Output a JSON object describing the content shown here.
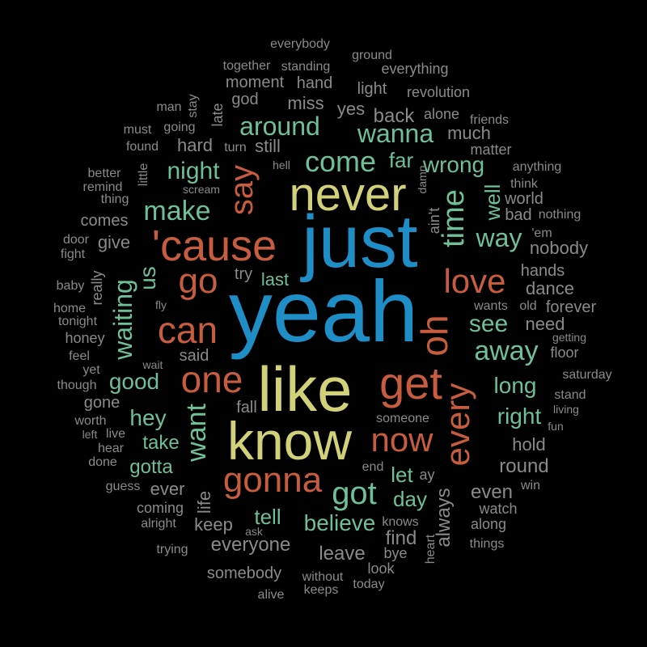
{
  "palette": {
    "blue": "#1f8ec7",
    "yellow": "#d1d17a",
    "orange": "#c75c3e",
    "teal": "#6fbf98",
    "gray": "#8a8a8a",
    "background": "#000000"
  },
  "words": [
    {
      "text": "yeah",
      "color": "blue"
    },
    {
      "text": "just",
      "color": "blue"
    },
    {
      "text": "like",
      "color": "yellow"
    },
    {
      "text": "know",
      "color": "yellow"
    },
    {
      "text": "never",
      "color": "yellow"
    },
    {
      "text": "'cause",
      "color": "orange"
    },
    {
      "text": "get",
      "color": "orange"
    },
    {
      "text": "one",
      "color": "orange"
    },
    {
      "text": "gonna",
      "color": "orange"
    },
    {
      "text": "now",
      "color": "orange"
    },
    {
      "text": "can",
      "color": "orange"
    },
    {
      "text": "go",
      "color": "orange"
    },
    {
      "text": "love",
      "color": "orange"
    },
    {
      "text": "oh",
      "color": "orange"
    },
    {
      "text": "every",
      "color": "orange"
    },
    {
      "text": "say",
      "color": "orange"
    },
    {
      "text": "time",
      "color": "teal"
    },
    {
      "text": "got",
      "color": "teal"
    },
    {
      "text": "come",
      "color": "teal"
    },
    {
      "text": "make",
      "color": "teal"
    },
    {
      "text": "around",
      "color": "teal"
    },
    {
      "text": "wanna",
      "color": "teal"
    },
    {
      "text": "away",
      "color": "teal"
    },
    {
      "text": "see",
      "color": "teal"
    },
    {
      "text": "waiting",
      "color": "teal"
    },
    {
      "text": "want",
      "color": "teal"
    },
    {
      "text": "night",
      "color": "teal"
    },
    {
      "text": "wrong",
      "color": "teal"
    },
    {
      "text": "way",
      "color": "teal"
    },
    {
      "text": "believe",
      "color": "teal"
    },
    {
      "text": "good",
      "color": "teal"
    },
    {
      "text": "hey",
      "color": "teal"
    },
    {
      "text": "long",
      "color": "teal"
    },
    {
      "text": "right",
      "color": "teal"
    },
    {
      "text": "let",
      "color": "teal"
    },
    {
      "text": "day",
      "color": "teal"
    },
    {
      "text": "tell",
      "color": "teal"
    },
    {
      "text": "take",
      "color": "teal"
    },
    {
      "text": "gotta",
      "color": "teal"
    },
    {
      "text": "us",
      "color": "teal"
    },
    {
      "text": "far",
      "color": "teal"
    },
    {
      "text": "well",
      "color": "teal"
    },
    {
      "text": "last",
      "color": "teal"
    },
    {
      "text": "everyone",
      "color": "gray"
    },
    {
      "text": "always",
      "color": "gray"
    },
    {
      "text": "keep",
      "color": "gray"
    },
    {
      "text": "leave",
      "color": "gray"
    },
    {
      "text": "find",
      "color": "gray"
    },
    {
      "text": "even",
      "color": "gray"
    },
    {
      "text": "round",
      "color": "gray"
    },
    {
      "text": "hold",
      "color": "gray"
    },
    {
      "text": "dance",
      "color": "gray"
    },
    {
      "text": "nobody",
      "color": "gray"
    },
    {
      "text": "need",
      "color": "gray"
    },
    {
      "text": "forever",
      "color": "gray"
    },
    {
      "text": "hands",
      "color": "gray"
    },
    {
      "text": "miss",
      "color": "gray"
    },
    {
      "text": "back",
      "color": "gray"
    },
    {
      "text": "yes",
      "color": "gray"
    },
    {
      "text": "hard",
      "color": "gray"
    },
    {
      "text": "still",
      "color": "gray"
    },
    {
      "text": "much",
      "color": "gray"
    },
    {
      "text": "world",
      "color": "gray"
    },
    {
      "text": "bad",
      "color": "gray"
    },
    {
      "text": "give",
      "color": "gray"
    },
    {
      "text": "comes",
      "color": "gray"
    },
    {
      "text": "said",
      "color": "gray"
    },
    {
      "text": "ever",
      "color": "gray"
    },
    {
      "text": "fall",
      "color": "gray"
    },
    {
      "text": "gone",
      "color": "gray"
    },
    {
      "text": "life",
      "color": "gray"
    },
    {
      "text": "somebody",
      "color": "gray"
    },
    {
      "text": "light",
      "color": "gray"
    },
    {
      "text": "hand",
      "color": "gray"
    },
    {
      "text": "moment",
      "color": "gray"
    },
    {
      "text": "god",
      "color": "gray"
    },
    {
      "text": "late",
      "color": "gray"
    },
    {
      "text": "really",
      "color": "gray"
    },
    {
      "text": "try",
      "color": "gray"
    },
    {
      "text": "someone",
      "color": "gray"
    },
    {
      "text": "matter",
      "color": "gray"
    },
    {
      "text": "alone",
      "color": "gray"
    },
    {
      "text": "revolution",
      "color": "gray"
    },
    {
      "text": "everything",
      "color": "gray"
    },
    {
      "text": "ground",
      "color": "gray"
    },
    {
      "text": "everybody",
      "color": "gray"
    },
    {
      "text": "together",
      "color": "gray"
    },
    {
      "text": "standing",
      "color": "gray"
    },
    {
      "text": "man",
      "color": "gray"
    },
    {
      "text": "stay",
      "color": "gray"
    },
    {
      "text": "must",
      "color": "gray"
    },
    {
      "text": "going",
      "color": "gray"
    },
    {
      "text": "found",
      "color": "gray"
    },
    {
      "text": "turn",
      "color": "gray"
    },
    {
      "text": "hell",
      "color": "gray"
    },
    {
      "text": "friends",
      "color": "gray"
    },
    {
      "text": "anything",
      "color": "gray"
    },
    {
      "text": "think",
      "color": "gray"
    },
    {
      "text": "nothing",
      "color": "gray"
    },
    {
      "text": "'em",
      "color": "gray"
    },
    {
      "text": "better",
      "color": "gray"
    },
    {
      "text": "remind",
      "color": "gray"
    },
    {
      "text": "thing",
      "color": "gray"
    },
    {
      "text": "little",
      "color": "gray"
    },
    {
      "text": "scream",
      "color": "gray"
    },
    {
      "text": "door",
      "color": "gray"
    },
    {
      "text": "fight",
      "color": "gray"
    },
    {
      "text": "baby",
      "color": "gray"
    },
    {
      "text": "fly",
      "color": "gray"
    },
    {
      "text": "home",
      "color": "gray"
    },
    {
      "text": "tonight",
      "color": "gray"
    },
    {
      "text": "honey",
      "color": "gray"
    },
    {
      "text": "feel",
      "color": "gray"
    },
    {
      "text": "wait",
      "color": "gray"
    },
    {
      "text": "yet",
      "color": "gray"
    },
    {
      "text": "though",
      "color": "gray"
    },
    {
      "text": "worth",
      "color": "gray"
    },
    {
      "text": "left",
      "color": "gray"
    },
    {
      "text": "live",
      "color": "gray"
    },
    {
      "text": "hear",
      "color": "gray"
    },
    {
      "text": "done",
      "color": "gray"
    },
    {
      "text": "guess",
      "color": "gray"
    },
    {
      "text": "coming",
      "color": "gray"
    },
    {
      "text": "alright",
      "color": "gray"
    },
    {
      "text": "trying",
      "color": "gray"
    },
    {
      "text": "ask",
      "color": "gray"
    },
    {
      "text": "alive",
      "color": "gray"
    },
    {
      "text": "keeps",
      "color": "gray"
    },
    {
      "text": "without",
      "color": "gray"
    },
    {
      "text": "today",
      "color": "gray"
    },
    {
      "text": "look",
      "color": "gray"
    },
    {
      "text": "bye",
      "color": "gray"
    },
    {
      "text": "heart",
      "color": "gray"
    },
    {
      "text": "knows",
      "color": "gray"
    },
    {
      "text": "end",
      "color": "gray"
    },
    {
      "text": "ay",
      "color": "gray"
    },
    {
      "text": "along",
      "color": "gray"
    },
    {
      "text": "things",
      "color": "gray"
    },
    {
      "text": "watch",
      "color": "gray"
    },
    {
      "text": "win",
      "color": "gray"
    },
    {
      "text": "fun",
      "color": "gray"
    },
    {
      "text": "stand",
      "color": "gray"
    },
    {
      "text": "saturday",
      "color": "gray"
    },
    {
      "text": "living",
      "color": "gray"
    },
    {
      "text": "getting",
      "color": "gray"
    },
    {
      "text": "floor",
      "color": "gray"
    },
    {
      "text": "old",
      "color": "gray"
    },
    {
      "text": "wants",
      "color": "gray"
    },
    {
      "text": "ain't",
      "color": "gray"
    },
    {
      "text": "damn",
      "color": "gray"
    }
  ]
}
